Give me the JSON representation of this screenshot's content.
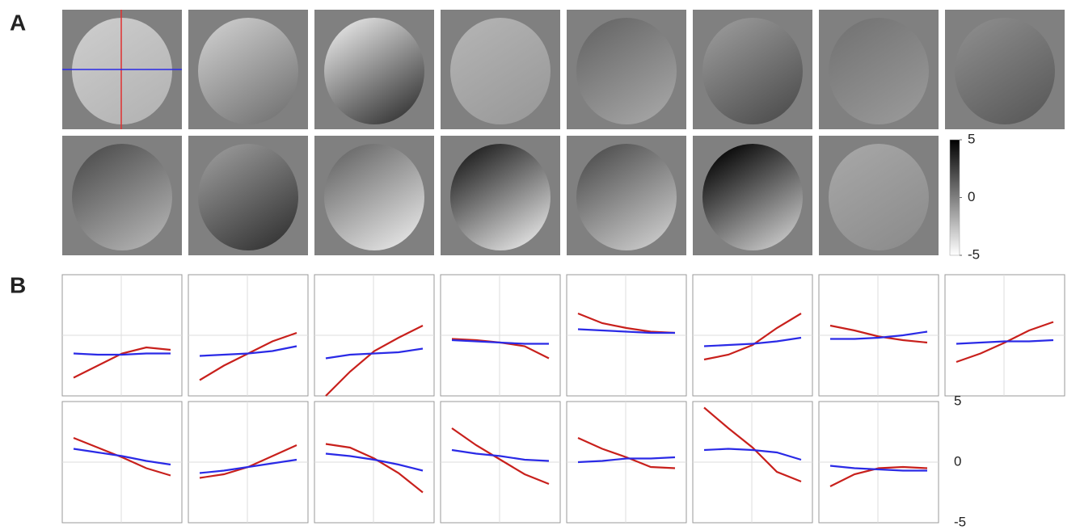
{
  "panel_a": {
    "label": "A",
    "images": [
      {
        "start": -3,
        "end": -2
      },
      {
        "start": -3,
        "end": 0.5
      },
      {
        "start": -4,
        "end": 3
      },
      {
        "start": -2,
        "end": -1
      },
      {
        "start": 1,
        "end": -1.5
      },
      {
        "start": -1,
        "end": 2
      },
      {
        "start": 0.5,
        "end": -1
      },
      {
        "start": -0.5,
        "end": 1.5
      },
      {
        "start": 2,
        "end": -2
      },
      {
        "start": -1,
        "end": 3
      },
      {
        "start": 1,
        "end": -4
      },
      {
        "start": 4,
        "end": -4
      },
      {
        "start": 2,
        "end": -3
      },
      {
        "start": 5,
        "end": -3
      },
      {
        "start": -1.5,
        "end": -0.5
      }
    ],
    "colorbar": {
      "lim": [
        -5,
        5
      ],
      "ticks": [
        5,
        0,
        -5
      ]
    }
  },
  "panel_b": {
    "label": "B",
    "ylim": [
      -5,
      5
    ],
    "yticks": [
      5,
      0,
      -5
    ],
    "grid": true,
    "colors": [
      "#c8201c",
      "#2a2ae6"
    ],
    "plots": [
      [
        [
          -3.5,
          -2.5,
          -1.5,
          -1,
          -1.2
        ],
        [
          -1.5,
          -1.6,
          -1.6,
          -1.5,
          -1.5
        ]
      ],
      [
        [
          -3.7,
          -2.5,
          -1.5,
          -0.5,
          0.2
        ],
        [
          -1.7,
          -1.6,
          -1.5,
          -1.3,
          -0.9
        ]
      ],
      [
        [
          -5,
          -3,
          -1.3,
          -0.2,
          0.8
        ],
        [
          -1.9,
          -1.6,
          -1.5,
          -1.4,
          -1.1
        ]
      ],
      [
        [
          -0.3,
          -0.4,
          -0.6,
          -0.9,
          -1.9
        ],
        [
          -0.4,
          -0.5,
          -0.6,
          -0.7,
          -0.7
        ]
      ],
      [
        [
          1.8,
          1,
          0.6,
          0.3,
          0.2
        ],
        [
          0.5,
          0.4,
          0.3,
          0.2,
          0.2
        ]
      ],
      [
        [
          -2,
          -1.6,
          -0.8,
          0.6,
          1.8
        ],
        [
          -0.9,
          -0.8,
          -0.7,
          -0.5,
          -0.2
        ]
      ],
      [
        [
          0.8,
          0.4,
          -0.1,
          -0.4,
          -0.6
        ],
        [
          -0.3,
          -0.3,
          -0.2,
          0,
          0.3
        ]
      ],
      [
        [
          -2.2,
          -1.5,
          -0.6,
          0.4,
          1.1
        ],
        [
          -0.7,
          -0.6,
          -0.5,
          -0.5,
          -0.4
        ]
      ],
      [
        [
          2,
          1.2,
          0.4,
          -0.5,
          -1.1
        ],
        [
          1.1,
          0.8,
          0.5,
          0.1,
          -0.2
        ]
      ],
      [
        [
          -1.3,
          -1,
          -0.4,
          0.5,
          1.4
        ],
        [
          -0.9,
          -0.7,
          -0.4,
          -0.1,
          0.2
        ]
      ],
      [
        [
          1.5,
          1.2,
          0.3,
          -0.9,
          -2.5
        ],
        [
          0.7,
          0.5,
          0.2,
          -0.2,
          -0.7
        ]
      ],
      [
        [
          2.8,
          1.4,
          0.2,
          -1,
          -1.8
        ],
        [
          1,
          0.7,
          0.5,
          0.2,
          0.1
        ]
      ],
      [
        [
          2,
          1.1,
          0.4,
          -0.4,
          -0.5
        ],
        [
          0,
          0.1,
          0.3,
          0.3,
          0.4
        ]
      ],
      [
        [
          4.5,
          2.8,
          1.2,
          -0.8,
          -1.6
        ],
        [
          1,
          1.1,
          1,
          0.8,
          0.2
        ]
      ],
      [
        [
          -2,
          -1,
          -0.5,
          -0.4,
          -0.5
        ],
        [
          -0.3,
          -0.5,
          -0.6,
          -0.7,
          -0.7
        ]
      ]
    ]
  }
}
